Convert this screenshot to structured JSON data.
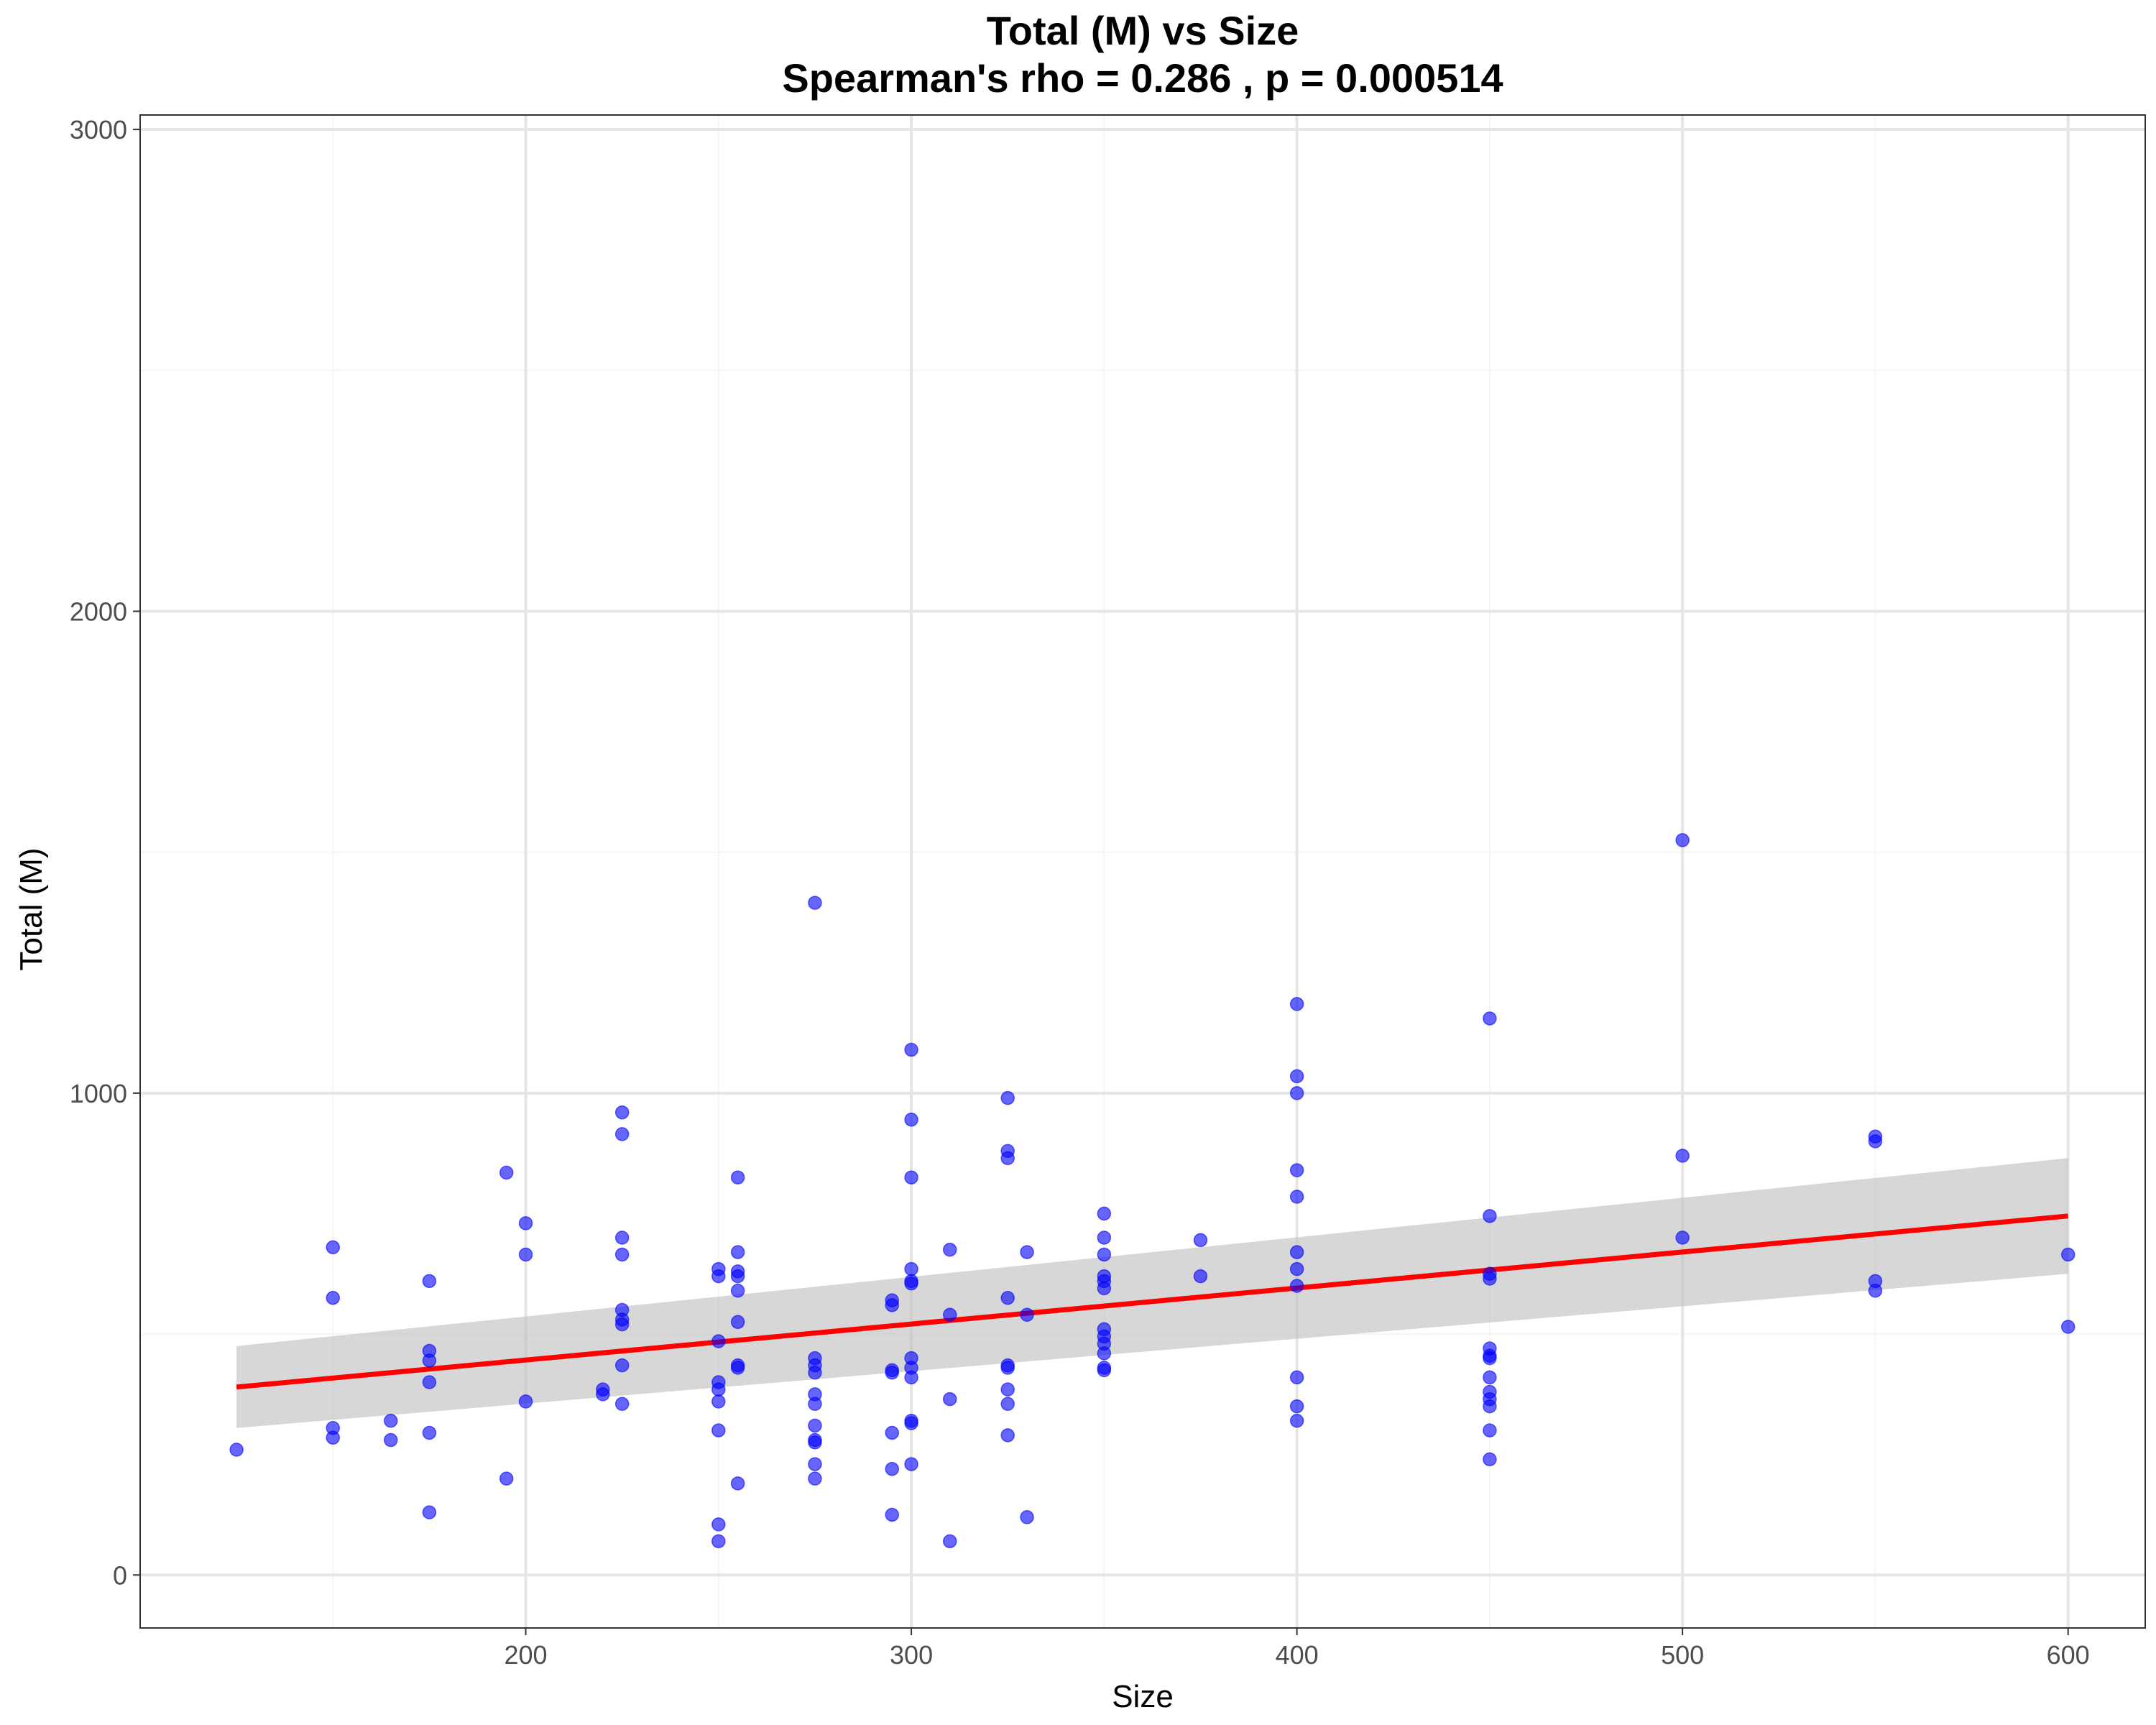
{
  "chart_data": {
    "type": "scatter",
    "title": "Total (M) vs Size",
    "subtitle": "Spearman's rho = 0.286 , p = 0.000514",
    "xlabel": "Size",
    "ylabel": "Total (M)",
    "xlim": [
      100,
      620
    ],
    "ylim": [
      -110,
      3030
    ],
    "x_ticks": [
      200,
      300,
      400,
      500,
      600
    ],
    "y_ticks": [
      0,
      1000,
      2000,
      3000
    ],
    "x_tick_labels": [
      "200",
      "300",
      "400",
      "500",
      "600"
    ],
    "y_tick_labels": [
      "0",
      "1000",
      "2000",
      "3000"
    ],
    "grid": true,
    "colors": {
      "points": "#0000ff",
      "trend_line": "#ff0000",
      "confidence_band": "#bdbdbd",
      "grid_major": "#e5e5e5",
      "grid_minor": "#f5f5f5"
    },
    "trend_line": {
      "x": [
        125,
        600
      ],
      "y": [
        390,
        745
      ]
    },
    "confidence_band": {
      "x": [
        125,
        600
      ],
      "lower": [
        305,
        625
      ],
      "upper": [
        475,
        865
      ]
    },
    "points": [
      {
        "x": 125,
        "y": 260
      },
      {
        "x": 150,
        "y": 680
      },
      {
        "x": 150,
        "y": 575
      },
      {
        "x": 150,
        "y": 305
      },
      {
        "x": 150,
        "y": 285
      },
      {
        "x": 165,
        "y": 320
      },
      {
        "x": 165,
        "y": 280
      },
      {
        "x": 175,
        "y": 610
      },
      {
        "x": 175,
        "y": 465
      },
      {
        "x": 175,
        "y": 445
      },
      {
        "x": 175,
        "y": 400
      },
      {
        "x": 175,
        "y": 295
      },
      {
        "x": 175,
        "y": 130
      },
      {
        "x": 195,
        "y": 835
      },
      {
        "x": 195,
        "y": 200
      },
      {
        "x": 200,
        "y": 730
      },
      {
        "x": 200,
        "y": 665
      },
      {
        "x": 200,
        "y": 360
      },
      {
        "x": 220,
        "y": 385
      },
      {
        "x": 220,
        "y": 375
      },
      {
        "x": 225,
        "y": 960
      },
      {
        "x": 225,
        "y": 915
      },
      {
        "x": 225,
        "y": 700
      },
      {
        "x": 225,
        "y": 665
      },
      {
        "x": 225,
        "y": 550
      },
      {
        "x": 225,
        "y": 530
      },
      {
        "x": 225,
        "y": 520
      },
      {
        "x": 225,
        "y": 435
      },
      {
        "x": 225,
        "y": 355
      },
      {
        "x": 250,
        "y": 635
      },
      {
        "x": 250,
        "y": 620
      },
      {
        "x": 250,
        "y": 485
      },
      {
        "x": 250,
        "y": 400
      },
      {
        "x": 250,
        "y": 385
      },
      {
        "x": 250,
        "y": 360
      },
      {
        "x": 250,
        "y": 300
      },
      {
        "x": 250,
        "y": 105
      },
      {
        "x": 250,
        "y": 70
      },
      {
        "x": 255,
        "y": 825
      },
      {
        "x": 255,
        "y": 670
      },
      {
        "x": 255,
        "y": 630
      },
      {
        "x": 255,
        "y": 620
      },
      {
        "x": 255,
        "y": 590
      },
      {
        "x": 255,
        "y": 525
      },
      {
        "x": 255,
        "y": 435
      },
      {
        "x": 255,
        "y": 430
      },
      {
        "x": 255,
        "y": 190
      },
      {
        "x": 275,
        "y": 1395
      },
      {
        "x": 275,
        "y": 450
      },
      {
        "x": 275,
        "y": 435
      },
      {
        "x": 275,
        "y": 420
      },
      {
        "x": 275,
        "y": 375
      },
      {
        "x": 275,
        "y": 355
      },
      {
        "x": 275,
        "y": 310
      },
      {
        "x": 275,
        "y": 280
      },
      {
        "x": 275,
        "y": 275
      },
      {
        "x": 275,
        "y": 230
      },
      {
        "x": 275,
        "y": 200
      },
      {
        "x": 295,
        "y": 570
      },
      {
        "x": 295,
        "y": 560
      },
      {
        "x": 295,
        "y": 425
      },
      {
        "x": 295,
        "y": 420
      },
      {
        "x": 295,
        "y": 295
      },
      {
        "x": 295,
        "y": 220
      },
      {
        "x": 295,
        "y": 125
      },
      {
        "x": 300,
        "y": 1090
      },
      {
        "x": 300,
        "y": 945
      },
      {
        "x": 300,
        "y": 825
      },
      {
        "x": 300,
        "y": 635
      },
      {
        "x": 300,
        "y": 610
      },
      {
        "x": 300,
        "y": 605
      },
      {
        "x": 300,
        "y": 450
      },
      {
        "x": 300,
        "y": 430
      },
      {
        "x": 300,
        "y": 410
      },
      {
        "x": 300,
        "y": 320
      },
      {
        "x": 300,
        "y": 315
      },
      {
        "x": 300,
        "y": 230
      },
      {
        "x": 310,
        "y": 675
      },
      {
        "x": 310,
        "y": 540
      },
      {
        "x": 310,
        "y": 365
      },
      {
        "x": 310,
        "y": 70
      },
      {
        "x": 325,
        "y": 990
      },
      {
        "x": 325,
        "y": 880
      },
      {
        "x": 325,
        "y": 865
      },
      {
        "x": 325,
        "y": 575
      },
      {
        "x": 325,
        "y": 435
      },
      {
        "x": 325,
        "y": 430
      },
      {
        "x": 325,
        "y": 385
      },
      {
        "x": 325,
        "y": 355
      },
      {
        "x": 325,
        "y": 290
      },
      {
        "x": 330,
        "y": 670
      },
      {
        "x": 330,
        "y": 540
      },
      {
        "x": 330,
        "y": 120
      },
      {
        "x": 350,
        "y": 750
      },
      {
        "x": 350,
        "y": 700
      },
      {
        "x": 350,
        "y": 665
      },
      {
        "x": 350,
        "y": 620
      },
      {
        "x": 350,
        "y": 610
      },
      {
        "x": 350,
        "y": 595
      },
      {
        "x": 350,
        "y": 510
      },
      {
        "x": 350,
        "y": 495
      },
      {
        "x": 350,
        "y": 480
      },
      {
        "x": 350,
        "y": 460
      },
      {
        "x": 350,
        "y": 430
      },
      {
        "x": 350,
        "y": 425
      },
      {
        "x": 375,
        "y": 695
      },
      {
        "x": 375,
        "y": 620
      },
      {
        "x": 400,
        "y": 1185
      },
      {
        "x": 400,
        "y": 1035
      },
      {
        "x": 400,
        "y": 1000
      },
      {
        "x": 400,
        "y": 840
      },
      {
        "x": 400,
        "y": 785
      },
      {
        "x": 400,
        "y": 670
      },
      {
        "x": 400,
        "y": 635
      },
      {
        "x": 400,
        "y": 600
      },
      {
        "x": 400,
        "y": 410
      },
      {
        "x": 400,
        "y": 350
      },
      {
        "x": 400,
        "y": 320
      },
      {
        "x": 450,
        "y": 1155
      },
      {
        "x": 450,
        "y": 745
      },
      {
        "x": 450,
        "y": 625
      },
      {
        "x": 450,
        "y": 615
      },
      {
        "x": 450,
        "y": 470
      },
      {
        "x": 450,
        "y": 455
      },
      {
        "x": 450,
        "y": 450
      },
      {
        "x": 450,
        "y": 410
      },
      {
        "x": 450,
        "y": 380
      },
      {
        "x": 450,
        "y": 365
      },
      {
        "x": 450,
        "y": 350
      },
      {
        "x": 450,
        "y": 300
      },
      {
        "x": 450,
        "y": 240
      },
      {
        "x": 500,
        "y": 1525
      },
      {
        "x": 500,
        "y": 870
      },
      {
        "x": 500,
        "y": 700
      },
      {
        "x": 550,
        "y": 910
      },
      {
        "x": 550,
        "y": 900
      },
      {
        "x": 550,
        "y": 610
      },
      {
        "x": 550,
        "y": 590
      },
      {
        "x": 600,
        "y": 665
      },
      {
        "x": 600,
        "y": 515
      }
    ]
  }
}
